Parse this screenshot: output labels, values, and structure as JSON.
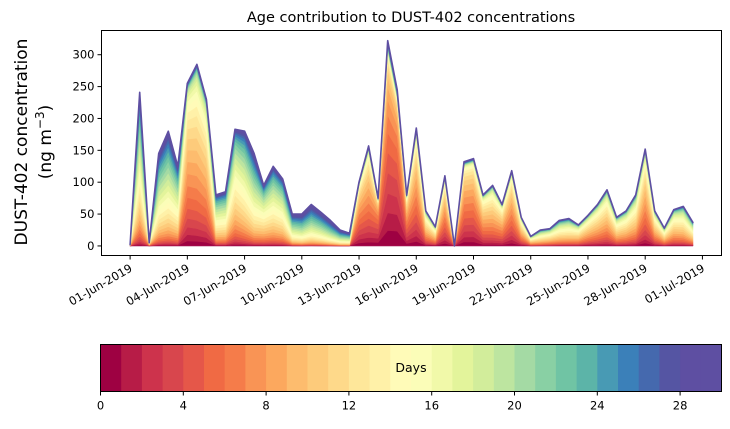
{
  "chart_data": {
    "type": "area",
    "stacked": true,
    "title": "Age contribution to DUST-402 concentrations",
    "ylabel_line1": "DUST-402 concentration",
    "ylabel_line2": "(ng m",
    "ylabel_sup": "−3",
    "ylabel_close": ")",
    "xlabel": "",
    "ylim": [
      -15,
      338
    ],
    "yticks": [
      0,
      50,
      100,
      150,
      200,
      250,
      300
    ],
    "xlim_days": [
      -1.5,
      31.0
    ],
    "xtick_days": [
      0,
      3,
      6,
      9,
      12,
      15,
      18,
      21,
      24,
      27,
      30
    ],
    "xtick_labels": [
      "01-Jun-2019",
      "04-Jun-2019",
      "07-Jun-2019",
      "10-Jun-2019",
      "13-Jun-2019",
      "16-Jun-2019",
      "19-Jun-2019",
      "22-Jun-2019",
      "25-Jun-2019",
      "28-Jun-2019",
      "01-Jul-2019"
    ],
    "time_step_days": 0.5,
    "start_date": "01-Jun-2019",
    "totals": [
      2,
      241,
      5,
      145,
      180,
      125,
      255,
      285,
      230,
      80,
      85,
      183,
      180,
      145,
      95,
      125,
      105,
      50,
      50,
      65,
      53,
      40,
      25,
      20,
      100,
      157,
      75,
      322,
      245,
      80,
      185,
      55,
      30,
      110,
      0,
      132,
      137,
      80,
      95,
      65,
      118,
      45,
      15,
      25,
      27,
      40,
      43,
      33,
      48,
      65,
      88,
      45,
      55,
      80,
      152,
      55,
      28,
      57,
      62,
      37
    ],
    "mean_age_days": [
      14,
      16,
      10,
      18,
      18,
      17,
      8,
      9,
      9,
      16,
      16,
      14,
      16,
      18,
      15,
      16,
      16,
      20,
      22,
      22,
      22,
      23,
      22,
      20,
      6,
      7,
      4,
      4,
      3,
      6,
      7,
      10,
      10,
      7,
      5,
      6,
      6,
      8,
      9,
      8,
      7,
      9,
      11,
      13,
      12,
      13,
      13,
      11,
      10,
      10,
      10,
      11,
      11,
      11,
      8,
      10,
      11,
      11,
      12,
      13
    ],
    "colorbar": {
      "label": "Days",
      "range": [
        0,
        30
      ],
      "ticks": [
        0,
        4,
        8,
        12,
        16,
        20,
        24,
        28
      ],
      "bins": 30,
      "colormap": "Spectral",
      "colors": [
        "#9e0142",
        "#b71c47",
        "#cd334c",
        "#d8464d",
        "#e55749",
        "#f06a44",
        "#f57c4a",
        "#f99455",
        "#fca85e",
        "#fdbc6e",
        "#fdcb7b",
        "#fed98a",
        "#fee79a",
        "#fff1a8",
        "#fffbb8",
        "#fbfdb8",
        "#f1f9a9",
        "#e3f49b",
        "#d2ed9b",
        "#bde5a0",
        "#a4daa4",
        "#89d0a4",
        "#70c4a4",
        "#5cb4a8",
        "#489ab4",
        "#3b80b9",
        "#4569ae",
        "#5555a3",
        "#5e4fa2",
        "#5e4fa2"
      ]
    }
  }
}
